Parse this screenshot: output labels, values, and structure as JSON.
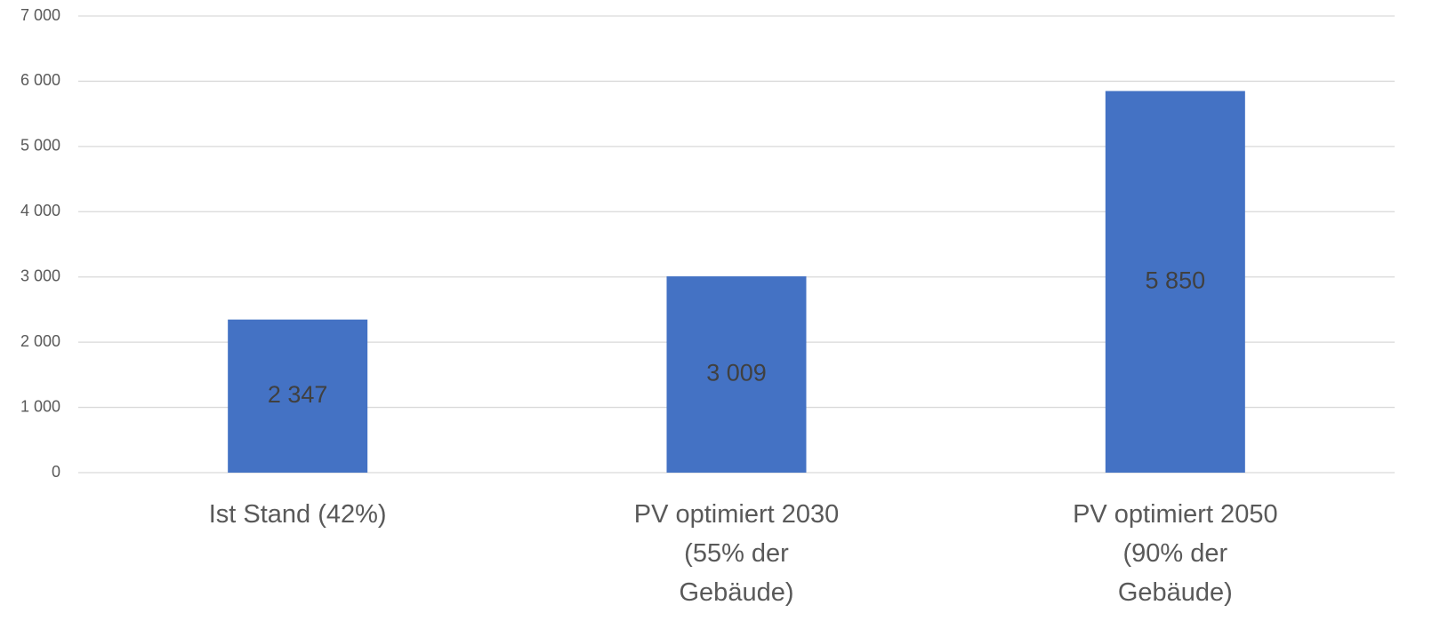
{
  "chart_data": {
    "type": "bar",
    "categories": [
      "Ist Stand (42%)",
      "PV optimiert 2030 (55% der Gebäude)",
      "PV optimiert 2050 (90% der Gebäude)"
    ],
    "values": [
      2347,
      3009,
      5850
    ],
    "value_labels": [
      "2 347",
      "3 009",
      "5 850"
    ],
    "color": "#4472c4",
    "ylim": [
      0,
      7000
    ],
    "yticks": [
      0,
      {
        "value": 1000,
        "label": "1 000"
      },
      {
        "value": 2000,
        "label": "2 000"
      },
      {
        "value": 3000,
        "label": "3 000"
      },
      {
        "value": 4000,
        "label": "4 000"
      },
      {
        "value": 5000,
        "label": "5 000"
      },
      {
        "value": 6000,
        "label": "6 000"
      },
      {
        "value": 7000,
        "label": "7 000"
      }
    ],
    "grid": true
  }
}
